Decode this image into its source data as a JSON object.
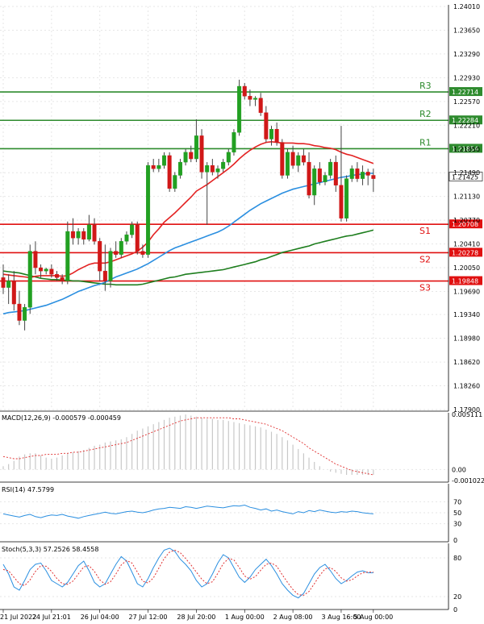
{
  "chart_data": [
    {
      "panel": "price",
      "type": "candlestick",
      "y_ticks": [
        "1.24010",
        "1.23650",
        "1.23290",
        "1.22930",
        "1.22570",
        "1.22210",
        "1.21850",
        "1.21490",
        "1.21130",
        "1.20770",
        "1.20410",
        "1.20050",
        "1.19690",
        "1.19340",
        "1.18980",
        "1.18620",
        "1.18260",
        "1.17900"
      ],
      "ylim": [
        1.179,
        1.2401
      ],
      "grid": true,
      "levels": [
        {
          "label": "R3",
          "value": 1.22714,
          "value_label": "1.22714",
          "color": "#2e8b2e"
        },
        {
          "label": "R2",
          "value": 1.22284,
          "value_label": "1.22284",
          "color": "#2e8b2e"
        },
        {
          "label": "R1",
          "value": 1.21854,
          "value_label": "1.21854",
          "color": "#2e8b2e"
        },
        {
          "label": "S1",
          "value": 1.20708,
          "value_label": "1.20708",
          "color": "#e01010"
        },
        {
          "label": "S2",
          "value": 1.20278,
          "value_label": "1.20278",
          "color": "#e01010"
        },
        {
          "label": "S3",
          "value": 1.19848,
          "value_label": "1.19848",
          "color": "#e01010"
        }
      ],
      "current_price": {
        "value": 1.21425,
        "label": "1.21425"
      },
      "candles": [
        [
          1.199,
          1.201,
          1.1965,
          1.1975
        ],
        [
          1.1975,
          1.1995,
          1.195,
          1.1985
        ],
        [
          1.1985,
          1.2,
          1.194,
          1.195
        ],
        [
          1.195,
          1.197,
          1.1918,
          1.1925
        ],
        [
          1.1925,
          1.195,
          1.191,
          1.1945
        ],
        [
          1.1945,
          1.204,
          1.1935,
          1.203
        ],
        [
          1.203,
          1.2045,
          1.1995,
          1.2005
        ],
        [
          1.2005,
          1.201,
          1.199,
          1.2
        ],
        [
          1.2,
          1.2005,
          1.1995,
          1.2003
        ],
        [
          1.2003,
          1.201,
          1.199,
          1.1995
        ],
        [
          1.1995,
          1.2,
          1.1985,
          1.199
        ],
        [
          1.199,
          1.1995,
          1.198,
          1.1985
        ],
        [
          1.1985,
          1.2075,
          1.198,
          1.206
        ],
        [
          1.206,
          1.208,
          1.204,
          1.205
        ],
        [
          1.205,
          1.2065,
          1.204,
          1.206
        ],
        [
          1.206,
          1.2065,
          1.204,
          1.2048
        ],
        [
          1.2048,
          1.2085,
          1.2045,
          1.207
        ],
        [
          1.207,
          1.208,
          1.204,
          1.2045
        ],
        [
          1.2045,
          1.205,
          1.1985,
          1.2
        ],
        [
          1.2,
          1.204,
          1.197,
          1.1985
        ],
        [
          1.1985,
          1.2035,
          1.1975,
          1.203
        ],
        [
          1.203,
          1.2045,
          1.202,
          1.2025
        ],
        [
          1.2025,
          1.205,
          1.202,
          1.2045
        ],
        [
          1.2045,
          1.206,
          1.204,
          1.2055
        ],
        [
          1.2055,
          1.2075,
          1.205,
          1.207
        ],
        [
          1.207,
          1.2075,
          1.2025,
          1.203
        ],
        [
          1.203,
          1.204,
          1.202,
          1.2025
        ],
        [
          1.2025,
          1.2165,
          1.202,
          1.216
        ],
        [
          1.216,
          1.217,
          1.215,
          1.2155
        ],
        [
          1.2155,
          1.217,
          1.215,
          1.216
        ],
        [
          1.216,
          1.218,
          1.2155,
          1.2175
        ],
        [
          1.2175,
          1.218,
          1.212,
          1.2125
        ],
        [
          1.2125,
          1.215,
          1.212,
          1.2145
        ],
        [
          1.2145,
          1.217,
          1.214,
          1.2165
        ],
        [
          1.2165,
          1.2185,
          1.216,
          1.218
        ],
        [
          1.218,
          1.219,
          1.2165,
          1.217
        ],
        [
          1.217,
          1.223,
          1.2165,
          1.2205
        ],
        [
          1.2205,
          1.2215,
          1.214,
          1.215
        ],
        [
          1.215,
          1.2165,
          1.207,
          1.216
        ],
        [
          1.216,
          1.217,
          1.2145,
          1.215
        ],
        [
          1.215,
          1.216,
          1.214,
          1.2155
        ],
        [
          1.2155,
          1.217,
          1.215,
          1.2165
        ],
        [
          1.2165,
          1.2185,
          1.216,
          1.218
        ],
        [
          1.218,
          1.2215,
          1.2175,
          1.221
        ],
        [
          1.221,
          1.229,
          1.2205,
          1.228
        ],
        [
          1.228,
          1.2285,
          1.226,
          1.2265
        ],
        [
          1.2265,
          1.2275,
          1.225,
          1.226
        ],
        [
          1.226,
          1.2265,
          1.225,
          1.2262
        ],
        [
          1.2262,
          1.227,
          1.2235,
          1.224
        ],
        [
          1.224,
          1.225,
          1.2195,
          1.22
        ],
        [
          1.22,
          1.222,
          1.219,
          1.2215
        ],
        [
          1.2215,
          1.2225,
          1.219,
          1.2195
        ],
        [
          1.2195,
          1.22,
          1.214,
          1.2145
        ],
        [
          1.2145,
          1.2185,
          1.214,
          1.218
        ],
        [
          1.218,
          1.219,
          1.2155,
          1.216
        ],
        [
          1.216,
          1.218,
          1.215,
          1.2175
        ],
        [
          1.2175,
          1.2185,
          1.216,
          1.2165
        ],
        [
          1.2165,
          1.218,
          1.211,
          1.2115
        ],
        [
          1.2115,
          1.216,
          1.21,
          1.2155
        ],
        [
          1.2155,
          1.2165,
          1.213,
          1.2135
        ],
        [
          1.2135,
          1.215,
          1.213,
          1.2145
        ],
        [
          1.2145,
          1.217,
          1.214,
          1.2165
        ],
        [
          1.2165,
          1.2175,
          1.212,
          1.213
        ],
        [
          1.213,
          1.222,
          1.2075,
          1.208
        ],
        [
          1.208,
          1.2145,
          1.2075,
          1.214
        ],
        [
          1.214,
          1.216,
          1.2135,
          1.2155
        ],
        [
          1.2155,
          1.2165,
          1.2135,
          1.214
        ],
        [
          1.214,
          1.216,
          1.213,
          1.215
        ],
        [
          1.215,
          1.2155,
          1.213,
          1.2145
        ],
        [
          1.2145,
          1.2155,
          1.212,
          1.214
        ]
      ],
      "ma_red": [
        1.1995,
        1.1994,
        1.1993,
        1.1992,
        1.1991,
        1.199,
        1.1992,
        1.1993,
        1.1993,
        1.1993,
        1.1993,
        1.1992,
        1.1993,
        1.1997,
        1.2002,
        1.2006,
        1.201,
        1.2012,
        1.2012,
        1.2012,
        1.2014,
        1.2017,
        1.202,
        1.2023,
        1.2026,
        1.203,
        1.2036,
        1.2044,
        1.2055,
        1.2064,
        1.2074,
        1.2081,
        1.2088,
        1.2096,
        1.2104,
        1.2112,
        1.2121,
        1.2126,
        1.2131,
        1.2137,
        1.2143,
        1.2149,
        1.2155,
        1.2162,
        1.217,
        1.2177,
        1.2183,
        1.2188,
        1.2192,
        1.2195,
        1.2196,
        1.2195,
        1.2194,
        1.2194,
        1.2194,
        1.2193,
        1.2193,
        1.2192,
        1.219,
        1.2189,
        1.2187,
        1.2186,
        1.2184,
        1.218,
        1.2177,
        1.2175,
        1.2172,
        1.2169,
        1.2166,
        1.2163
      ],
      "ma_blue": [
        1.1935,
        1.1937,
        1.1938,
        1.1939,
        1.194,
        1.1942,
        1.1944,
        1.1946,
        1.1948,
        1.1951,
        1.1954,
        1.1957,
        1.1961,
        1.1965,
        1.1969,
        1.1972,
        1.1975,
        1.1978,
        1.198,
        1.1983,
        1.1987,
        1.1991,
        1.1994,
        1.1997,
        1.2,
        1.2003,
        1.2007,
        1.2011,
        1.2016,
        1.2021,
        1.2026,
        1.2031,
        1.2035,
        1.2038,
        1.2041,
        1.2044,
        1.2047,
        1.205,
        1.2053,
        1.2056,
        1.2059,
        1.2063,
        1.2068,
        1.2074,
        1.208,
        1.2086,
        1.2092,
        1.2097,
        1.2102,
        1.2106,
        1.211,
        1.2114,
        1.2118,
        1.2121,
        1.2124,
        1.2126,
        1.2128,
        1.213,
        1.2132,
        1.2134,
        1.2136,
        1.2138,
        1.214,
        1.2142,
        1.2143,
        1.2145,
        1.2146,
        1.2147,
        1.2148,
        1.2148
      ],
      "ma_green": [
        1.2,
        1.1999,
        1.1998,
        1.1997,
        1.1995,
        1.1993,
        1.1991,
        1.1989,
        1.1988,
        1.1987,
        1.1987,
        1.1986,
        1.1986,
        1.1985,
        1.1985,
        1.1984,
        1.1983,
        1.1982,
        1.1981,
        1.198,
        1.198,
        1.1979,
        1.1979,
        1.1979,
        1.1979,
        1.1979,
        1.198,
        1.1982,
        1.1984,
        1.1986,
        1.1988,
        1.199,
        1.1991,
        1.1993,
        1.1995,
        1.1996,
        1.1997,
        1.1998,
        1.1999,
        1.2,
        1.2001,
        1.2002,
        1.2004,
        1.2006,
        1.2008,
        1.201,
        1.2012,
        1.2014,
        1.2017,
        1.2019,
        1.2022,
        1.2025,
        1.2028,
        1.203,
        1.2032,
        1.2034,
        1.2036,
        1.2038,
        1.2041,
        1.2043,
        1.2045,
        1.2047,
        1.2049,
        1.2051,
        1.2053,
        1.2054,
        1.2056,
        1.2058,
        1.206,
        1.2062
      ]
    },
    {
      "panel": "macd",
      "type": "bar",
      "label": "MACD(12,26,9) -0.000579 -0.000459",
      "y_ticks": [
        "0.005111",
        "0.00",
        "-0.001022"
      ],
      "ylim": [
        -0.001022,
        0.005111
      ],
      "histogram": [
        0.0003,
        0.0005,
        0.0008,
        0.0012,
        0.0014,
        0.0015,
        0.0015,
        0.0013,
        0.0011,
        0.001,
        0.0011,
        0.0013,
        0.0015,
        0.0016,
        0.0017,
        0.0018,
        0.002,
        0.0022,
        0.0023,
        0.0025,
        0.0026,
        0.0027,
        0.0028,
        0.003,
        0.0033,
        0.0036,
        0.0038,
        0.004,
        0.0042,
        0.0044,
        0.0046,
        0.0048,
        0.0049,
        0.005,
        0.0051,
        0.005,
        0.0049,
        0.0048,
        0.0047,
        0.0047,
        0.0046,
        0.0046,
        0.0045,
        0.0044,
        0.0043,
        0.0042,
        0.0041,
        0.004,
        0.0039,
        0.0037,
        0.0035,
        0.0033,
        0.003,
        0.0027,
        0.0023,
        0.0019,
        0.0015,
        0.0011,
        0.0007,
        0.0003,
        0.0,
        -0.0002,
        -0.0003,
        -0.0004,
        -0.0005,
        -0.0005,
        -0.0005,
        -0.0005,
        -0.0005,
        -0.0005
      ],
      "signal": [
        0.0012,
        0.0011,
        0.001,
        0.001,
        0.0011,
        0.0012,
        0.0013,
        0.0013,
        0.0014,
        0.0014,
        0.0014,
        0.0015,
        0.0015,
        0.0016,
        0.0016,
        0.0017,
        0.0018,
        0.0019,
        0.002,
        0.0021,
        0.0022,
        0.0023,
        0.0024,
        0.0025,
        0.0027,
        0.0029,
        0.0031,
        0.0033,
        0.0035,
        0.0037,
        0.0039,
        0.0041,
        0.0043,
        0.0045,
        0.0046,
        0.0047,
        0.0048,
        0.0048,
        0.0048,
        0.0048,
        0.0048,
        0.0048,
        0.0048,
        0.0047,
        0.0047,
        0.0046,
        0.0045,
        0.0044,
        0.0043,
        0.0042,
        0.004,
        0.0038,
        0.0036,
        0.0033,
        0.003,
        0.0027,
        0.0024,
        0.002,
        0.0017,
        0.0014,
        0.0011,
        0.0008,
        0.0005,
        0.0003,
        0.0001,
        -0.0001,
        -0.0002,
        -0.0003,
        -0.0004,
        -0.0005
      ]
    },
    {
      "panel": "rsi",
      "type": "line",
      "label": "RSI(14) 47.5799",
      "y_ticks": [
        "70",
        "50",
        "30",
        "0"
      ],
      "ylim": [
        0,
        100
      ],
      "values": [
        48,
        46,
        44,
        42,
        45,
        47,
        43,
        41,
        44,
        46,
        45,
        47,
        44,
        42,
        40,
        43,
        45,
        47,
        49,
        51,
        49,
        48,
        50,
        52,
        53,
        51,
        50,
        52,
        55,
        57,
        58,
        60,
        59,
        58,
        61,
        60,
        58,
        60,
        62,
        61,
        60,
        59,
        61,
        63,
        62,
        64,
        60,
        58,
        55,
        57,
        53,
        55,
        52,
        50,
        48,
        52,
        50,
        54,
        52,
        55,
        53,
        51,
        50,
        52,
        51,
        53,
        52,
        50,
        49,
        48
      ]
    },
    {
      "panel": "stoch",
      "type": "line",
      "label": "Stoch(5,3,3) 57.2526 58.4558",
      "y_ticks": [
        "80",
        "20",
        "0"
      ],
      "ylim": [
        0,
        100
      ],
      "k": [
        70,
        55,
        35,
        30,
        45,
        62,
        70,
        72,
        60,
        45,
        40,
        35,
        42,
        55,
        68,
        75,
        60,
        42,
        35,
        40,
        55,
        70,
        82,
        75,
        58,
        40,
        35,
        48,
        65,
        80,
        92,
        95,
        90,
        78,
        70,
        60,
        45,
        35,
        40,
        55,
        72,
        85,
        80,
        65,
        50,
        42,
        50,
        62,
        70,
        78,
        68,
        55,
        40,
        30,
        22,
        18,
        25,
        40,
        55,
        65,
        70,
        60,
        48,
        40,
        45,
        52,
        58,
        60,
        57,
        57
      ],
      "d": [
        62,
        60,
        50,
        40,
        37,
        46,
        59,
        68,
        67,
        59,
        48,
        40,
        39,
        44,
        55,
        66,
        68,
        59,
        46,
        39,
        43,
        55,
        69,
        76,
        72,
        58,
        44,
        41,
        49,
        64,
        79,
        89,
        92,
        88,
        79,
        69,
        58,
        47,
        40,
        43,
        56,
        71,
        79,
        77,
        65,
        52,
        47,
        51,
        61,
        70,
        72,
        67,
        54,
        42,
        31,
        23,
        22,
        28,
        40,
        53,
        63,
        65,
        59,
        49,
        44,
        46,
        52,
        57,
        58,
        58
      ]
    }
  ],
  "x_axis": {
    "ticks": [
      "21 Jul 2022",
      "24 Jul 21:01",
      "26 Jul 04:00",
      "27 Jul 12:00",
      "28 Jul 20:00",
      "1 Aug 00:00",
      "2 Aug 08:00",
      "3 Aug 16:00",
      "5 Aug 00:00"
    ],
    "tick_candle_index": [
      0,
      9,
      18,
      27,
      36,
      45,
      54,
      63,
      69
    ]
  },
  "colors": {
    "bull": "#22a022",
    "bear": "#d01818",
    "wick": "#444444",
    "ma_red": "#e32222",
    "ma_blue": "#2b8fe0",
    "ma_green": "#1e7e1e",
    "macd_hist": "#c8c8c8",
    "macd_signal": "#e03030",
    "rsi": "#2b8fe0",
    "stoch_k": "#2b8fe0",
    "stoch_d": "#e03030",
    "grid": "#e6e6e6",
    "current_tag": "#ffffff"
  }
}
